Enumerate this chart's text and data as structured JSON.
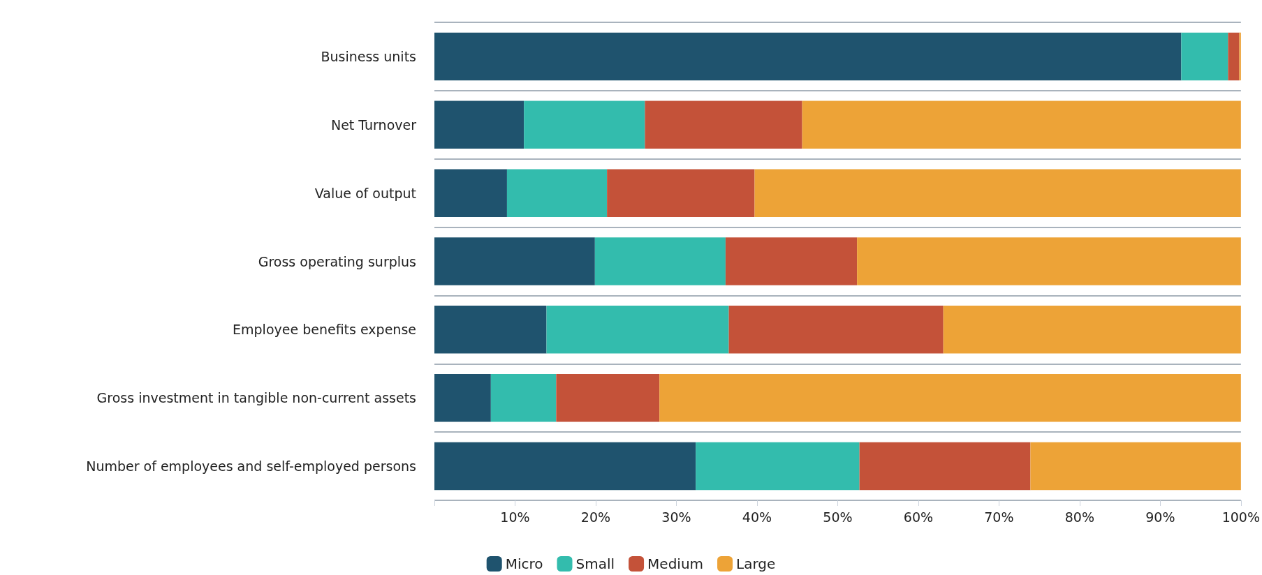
{
  "chart_data": {
    "type": "bar",
    "orientation": "horizontal",
    "stacked": true,
    "categories": [
      "Business units",
      "Net Turnover",
      "Value of output",
      "Gross operating surplus",
      "Employee benefits expense",
      "Gross investment in tangible non-current assets",
      "Number of employees and self-employed persons"
    ],
    "series": [
      {
        "name": "Micro",
        "color": "#1f536e",
        "values": [
          92.6,
          11.1,
          9.0,
          19.9,
          13.9,
          7.0,
          32.4
        ]
      },
      {
        "name": "Small",
        "color": "#33bcad",
        "values": [
          5.8,
          15.0,
          12.4,
          16.2,
          22.6,
          8.1,
          20.3
        ]
      },
      {
        "name": "Medium",
        "color": "#c45239",
        "values": [
          1.4,
          19.5,
          18.3,
          16.3,
          26.6,
          12.8,
          21.2
        ]
      },
      {
        "name": "Large",
        "color": "#eda337",
        "values": [
          0.2,
          54.4,
          60.3,
          47.6,
          36.9,
          72.1,
          26.1
        ]
      }
    ],
    "xlim": [
      0,
      100
    ],
    "xticks": [
      {
        "value": 0,
        "label": null
      },
      {
        "value": 10,
        "label": "10%"
      },
      {
        "value": 20,
        "label": "20%"
      },
      {
        "value": 30,
        "label": "30%"
      },
      {
        "value": 40,
        "label": "40%"
      },
      {
        "value": 50,
        "label": "50%"
      },
      {
        "value": 60,
        "label": "60%"
      },
      {
        "value": 70,
        "label": "70%"
      },
      {
        "value": 80,
        "label": "80%"
      },
      {
        "value": 90,
        "label": "90%"
      },
      {
        "value": 100,
        "label": "100%"
      }
    ],
    "grid": "y",
    "legend": "bottom"
  }
}
